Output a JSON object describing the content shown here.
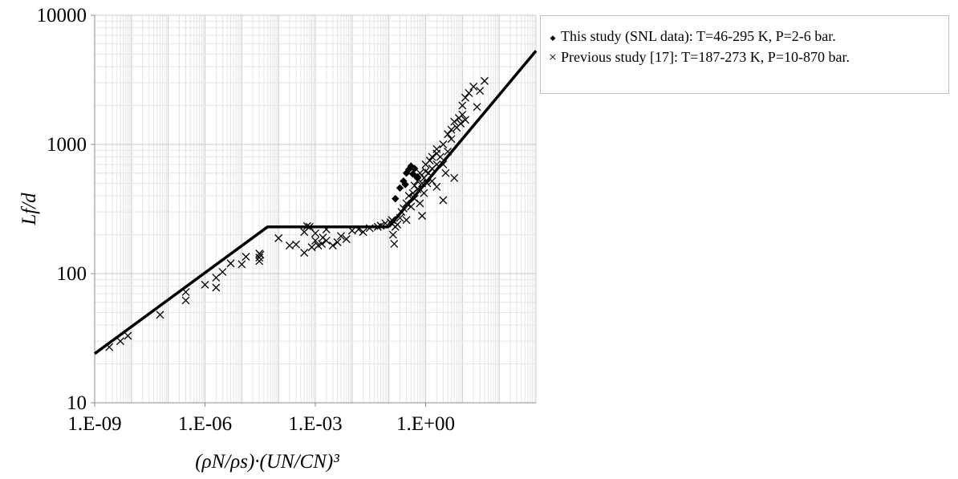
{
  "chart_data": {
    "type": "scatter",
    "xscale": "log",
    "yscale": "log",
    "xlim": [
      1e-09,
      1000
    ],
    "ylim": [
      10,
      10000
    ],
    "xlabel": "(ρN/ρs)·(UN/CN)³",
    "ylabel": "Lf/d",
    "x_tick_labels": [
      "1.E-09",
      "1.E-06",
      "1.E-03",
      "1.E+00"
    ],
    "x_tick_values": [
      1e-09,
      1e-06,
      0.001,
      1
    ],
    "y_tick_labels": [
      "10",
      "100",
      "1000",
      "10000"
    ],
    "y_tick_values": [
      10,
      100,
      1000,
      10000
    ],
    "grid": true,
    "legend_position": "top-right outside plot",
    "series": [
      {
        "name": "This study (SNL data): T=46-295 K, P=2-6 bar.",
        "marker": "diamond",
        "points": [
          [
            0.15,
            380
          ],
          [
            0.2,
            460
          ],
          [
            0.25,
            520
          ],
          [
            0.3,
            600
          ],
          [
            0.35,
            640
          ],
          [
            0.4,
            680
          ],
          [
            0.5,
            650
          ],
          [
            0.6,
            560
          ],
          [
            0.45,
            590
          ],
          [
            0.28,
            490
          ]
        ]
      },
      {
        "name": "Previous study [17]: T=187-273 K, P=10-870 bar.",
        "marker": "cross",
        "points": [
          [
            2.5e-09,
            27
          ],
          [
            5e-09,
            30
          ],
          [
            8e-09,
            33
          ],
          [
            6e-08,
            48
          ],
          [
            3e-07,
            62
          ],
          [
            3e-07,
            72
          ],
          [
            1e-06,
            82
          ],
          [
            2e-06,
            78
          ],
          [
            2e-06,
            93
          ],
          [
            3e-06,
            103
          ],
          [
            5e-06,
            120
          ],
          [
            1e-05,
            118
          ],
          [
            1.3e-05,
            135
          ],
          [
            3e-05,
            125
          ],
          [
            3e-05,
            133
          ],
          [
            3e-05,
            143
          ],
          [
            3.2e-05,
            140
          ],
          [
            0.0001,
            188
          ],
          [
            0.0002,
            165
          ],
          [
            0.0003,
            168
          ],
          [
            0.0005,
            210
          ],
          [
            0.0005,
            145
          ],
          [
            0.0006,
            233
          ],
          [
            0.0007,
            230
          ],
          [
            0.0008,
            160
          ],
          [
            0.001,
            205
          ],
          [
            0.001,
            180
          ],
          [
            0.0012,
            165
          ],
          [
            0.0015,
            170
          ],
          [
            0.0016,
            190
          ],
          [
            0.002,
            180
          ],
          [
            0.002,
            220
          ],
          [
            0.003,
            165
          ],
          [
            0.004,
            175
          ],
          [
            0.005,
            195
          ],
          [
            0.007,
            185
          ],
          [
            0.01,
            215
          ],
          [
            0.015,
            220
          ],
          [
            0.02,
            210
          ],
          [
            0.03,
            225
          ],
          [
            0.05,
            230
          ],
          [
            0.06,
            235
          ],
          [
            0.08,
            245
          ],
          [
            0.11,
            250
          ],
          [
            0.12,
            260
          ],
          [
            0.13,
            200
          ],
          [
            0.14,
            170
          ],
          [
            0.15,
            230
          ],
          [
            0.17,
            240
          ],
          [
            0.2,
            270
          ],
          [
            0.22,
            300
          ],
          [
            0.25,
            320
          ],
          [
            0.3,
            260
          ],
          [
            0.3,
            350
          ],
          [
            0.35,
            400
          ],
          [
            0.4,
            330
          ],
          [
            0.45,
            420
          ],
          [
            0.5,
            380
          ],
          [
            0.5,
            480
          ],
          [
            0.6,
            450
          ],
          [
            0.6,
            520
          ],
          [
            0.7,
            350
          ],
          [
            0.7,
            600
          ],
          [
            0.8,
            280
          ],
          [
            0.8,
            500
          ],
          [
            0.9,
            550
          ],
          [
            1.0,
            620
          ],
          [
            1.0,
            700
          ],
          [
            1.2,
            600
          ],
          [
            1.3,
            750
          ],
          [
            1.5,
            650
          ],
          [
            1.5,
            800
          ],
          [
            2.0,
            700
          ],
          [
            2.0,
            850
          ],
          [
            2.0,
            920
          ],
          [
            2.5,
            800
          ],
          [
            3.0,
            370
          ],
          [
            3.0,
            700
          ],
          [
            3.0,
            1000
          ],
          [
            4.0,
            880
          ],
          [
            4.0,
            1200
          ],
          [
            5.0,
            1100
          ],
          [
            5.0,
            1300
          ],
          [
            6.0,
            550
          ],
          [
            6.0,
            1500
          ],
          [
            7.0,
            1350
          ],
          [
            8.0,
            1600
          ],
          [
            9.0,
            1450
          ],
          [
            10.0,
            1700
          ],
          [
            10.0,
            2000
          ],
          [
            12.0,
            1550
          ],
          [
            12.0,
            2300
          ],
          [
            15.0,
            2500
          ],
          [
            20.0,
            2800
          ],
          [
            25.0,
            1950
          ],
          [
            30.0,
            2600
          ],
          [
            40.0,
            3100
          ],
          [
            2.0,
            470
          ],
          [
            1.5,
            520
          ],
          [
            3.5,
            600
          ],
          [
            0.9,
            420
          ],
          [
            1.1,
            500
          ]
        ]
      }
    ],
    "fit_lines": [
      {
        "segments": [
          [
            1e-09,
            24
          ],
          [
            5e-05,
            230
          ],
          [
            0.1,
            230
          ]
        ]
      },
      {
        "segments": [
          [
            0.1,
            230
          ],
          [
            1000,
            5300
          ]
        ]
      }
    ]
  },
  "legend": {
    "items": [
      {
        "marker_glyph": "◆",
        "label": "This study (SNL data): T=46-295 K, P=2-6 bar."
      },
      {
        "marker_glyph": "×",
        "label": "Previous study [17]: T=187-273 K, P=10-870 bar."
      }
    ]
  }
}
